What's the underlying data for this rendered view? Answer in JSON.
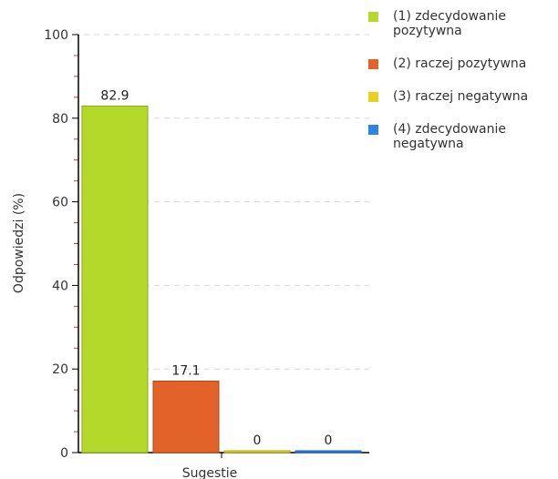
{
  "chart_data": {
    "type": "bar",
    "categories": [
      "Sugestie"
    ],
    "series": [
      {
        "name": "(1) zdecydowanie pozytywna",
        "values": [
          82.9
        ],
        "color": "#b5d92a",
        "border": "#8aab12"
      },
      {
        "name": "(2) raczej pozytywna",
        "values": [
          17.1
        ],
        "color": "#e2622a",
        "border": "#b44414"
      },
      {
        "name": "(3) raczej negatywna",
        "values": [
          0
        ],
        "color": "#e8d21e",
        "border": "#b9a40c"
      },
      {
        "name": "(4) zdecydowanie negatywna",
        "values": [
          0
        ],
        "color": "#2a86e2",
        "border": "#1464b4"
      }
    ],
    "data_labels": [
      "82.9",
      "17.1",
      "0",
      "0"
    ],
    "title": "",
    "xlabel": "Sugestie",
    "ylabel": "Odpowiedzi (%)",
    "ylim": [
      0,
      100
    ],
    "yticks": [
      0,
      20,
      40,
      60,
      80,
      100
    ],
    "grid": true,
    "legend_position": "right"
  }
}
